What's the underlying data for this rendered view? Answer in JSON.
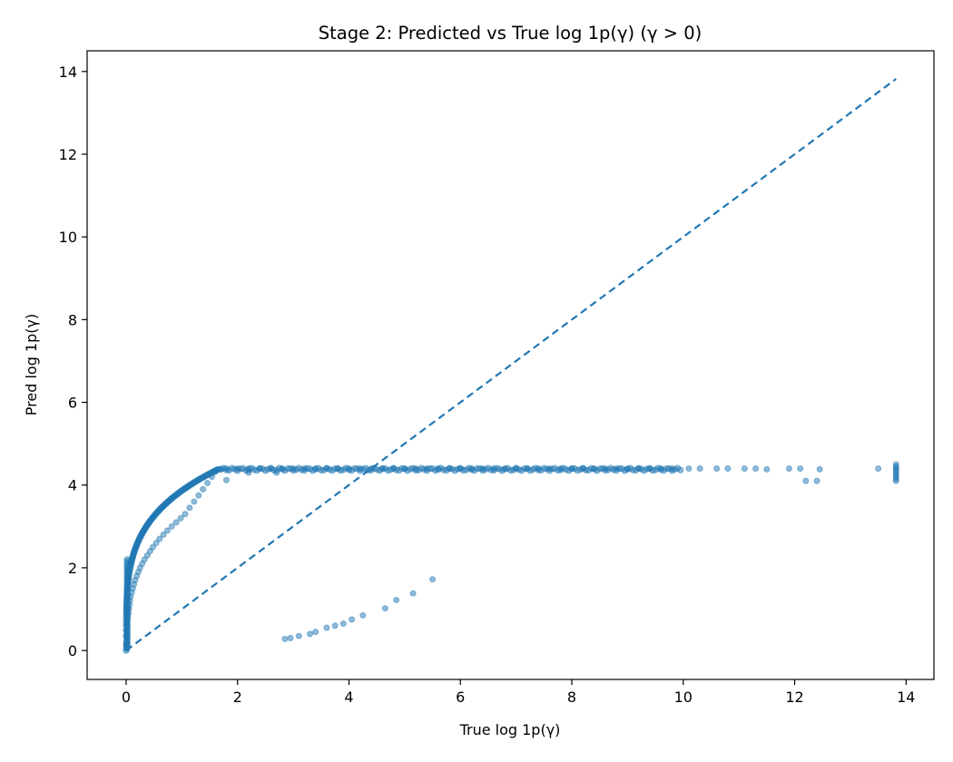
{
  "chart_data": {
    "type": "scatter",
    "title": "Stage 2: Predicted vs True log 1p(γ) (γ > 0)",
    "xlabel": "True log 1p(γ)",
    "ylabel": "Pred log 1p(γ)",
    "xlim": [
      -0.7,
      14.5
    ],
    "ylim": [
      -0.7,
      14.5
    ],
    "xticks": [
      0,
      2,
      4,
      6,
      8,
      10,
      12,
      14
    ],
    "yticks": [
      0,
      2,
      4,
      6,
      8,
      10,
      12,
      14
    ],
    "xtick_labels": [
      "0",
      "2",
      "4",
      "6",
      "8",
      "10",
      "12",
      "14"
    ],
    "ytick_labels": [
      "0",
      "2",
      "4",
      "6",
      "8",
      "10",
      "12",
      "14"
    ],
    "grid": false,
    "legend": "none",
    "colors": {
      "series": "#1f77b4",
      "reference_line": "#1f77b4"
    },
    "marker_alpha": 0.5,
    "reference_line": {
      "style": "dashed",
      "x": [
        0,
        13.82
      ],
      "y": [
        0,
        13.82
      ]
    },
    "series": [
      {
        "points": [
          [
            0.0,
            0.05
          ],
          [
            0.0,
            0.1
          ],
          [
            0.0,
            0.15
          ],
          [
            0.0,
            0.2
          ],
          [
            0.01,
            0.25
          ],
          [
            0.01,
            0.3
          ],
          [
            0.01,
            0.4
          ],
          [
            0.01,
            0.5
          ],
          [
            0.02,
            0.6
          ],
          [
            0.02,
            0.7
          ],
          [
            0.03,
            0.8
          ],
          [
            0.04,
            0.9
          ],
          [
            0.05,
            1.0
          ],
          [
            0.06,
            1.1
          ],
          [
            0.07,
            1.2
          ],
          [
            0.08,
            1.3
          ],
          [
            0.1,
            1.4
          ],
          [
            0.12,
            1.5
          ],
          [
            0.14,
            1.6
          ],
          [
            0.16,
            1.7
          ],
          [
            0.19,
            1.8
          ],
          [
            0.22,
            1.9
          ],
          [
            0.25,
            2.0
          ],
          [
            0.29,
            2.1
          ],
          [
            0.33,
            2.2
          ],
          [
            0.38,
            2.3
          ],
          [
            0.43,
            2.4
          ],
          [
            0.48,
            2.5
          ],
          [
            0.54,
            2.6
          ],
          [
            0.6,
            2.7
          ],
          [
            0.67,
            2.8
          ],
          [
            0.74,
            2.9
          ],
          [
            0.82,
            3.0
          ],
          [
            0.9,
            3.1
          ],
          [
            0.98,
            3.2
          ],
          [
            1.06,
            3.3
          ],
          [
            1.14,
            3.45
          ],
          [
            1.22,
            3.6
          ],
          [
            1.3,
            3.75
          ],
          [
            1.38,
            3.9
          ],
          [
            1.46,
            4.05
          ],
          [
            1.54,
            4.2
          ],
          [
            1.6,
            4.32
          ],
          [
            1.65,
            4.38
          ],
          [
            1.7,
            4.38
          ],
          [
            1.8,
            4.4
          ],
          [
            2.0,
            4.4
          ],
          [
            2.2,
            4.4
          ],
          [
            2.4,
            4.4
          ],
          [
            2.6,
            4.4
          ],
          [
            2.8,
            4.4
          ],
          [
            3.0,
            4.4
          ],
          [
            3.2,
            4.4
          ],
          [
            3.4,
            4.4
          ],
          [
            3.6,
            4.4
          ],
          [
            3.8,
            4.4
          ],
          [
            4.0,
            4.4
          ],
          [
            4.2,
            4.4
          ],
          [
            4.4,
            4.4
          ],
          [
            4.6,
            4.4
          ],
          [
            4.8,
            4.4
          ],
          [
            5.0,
            4.4
          ],
          [
            5.2,
            4.4
          ],
          [
            5.4,
            4.4
          ],
          [
            5.6,
            4.4
          ],
          [
            5.8,
            4.4
          ],
          [
            6.0,
            4.4
          ],
          [
            6.2,
            4.4
          ],
          [
            6.4,
            4.4
          ],
          [
            6.6,
            4.4
          ],
          [
            6.8,
            4.4
          ],
          [
            7.0,
            4.4
          ],
          [
            7.2,
            4.4
          ],
          [
            7.4,
            4.4
          ],
          [
            7.6,
            4.4
          ],
          [
            7.8,
            4.4
          ],
          [
            8.0,
            4.4
          ],
          [
            8.2,
            4.4
          ],
          [
            8.4,
            4.4
          ],
          [
            8.6,
            4.4
          ],
          [
            8.8,
            4.4
          ],
          [
            9.0,
            4.4
          ],
          [
            9.2,
            4.4
          ],
          [
            9.4,
            4.4
          ],
          [
            9.6,
            4.4
          ],
          [
            9.8,
            4.4
          ],
          [
            10.1,
            4.4
          ],
          [
            10.3,
            4.4
          ],
          [
            10.6,
            4.4
          ],
          [
            10.8,
            4.4
          ],
          [
            11.1,
            4.4
          ],
          [
            11.3,
            4.4
          ],
          [
            11.5,
            4.38
          ],
          [
            11.9,
            4.4
          ],
          [
            12.1,
            4.4
          ],
          [
            12.45,
            4.38
          ],
          [
            13.5,
            4.4
          ],
          [
            1.8,
            4.12
          ],
          [
            2.2,
            4.3
          ],
          [
            2.7,
            4.3
          ],
          [
            12.2,
            4.1
          ],
          [
            12.4,
            4.1
          ],
          [
            13.82,
            4.1
          ],
          [
            13.82,
            4.15
          ],
          [
            13.82,
            4.2
          ],
          [
            13.82,
            4.25
          ],
          [
            13.82,
            4.3
          ],
          [
            13.82,
            4.35
          ],
          [
            13.82,
            4.4
          ],
          [
            13.82,
            4.45
          ],
          [
            13.82,
            4.5
          ],
          [
            2.85,
            0.28
          ],
          [
            2.95,
            0.3
          ],
          [
            3.1,
            0.35
          ],
          [
            3.3,
            0.4
          ],
          [
            3.4,
            0.45
          ],
          [
            3.6,
            0.55
          ],
          [
            3.75,
            0.6
          ],
          [
            3.9,
            0.65
          ],
          [
            4.05,
            0.75
          ],
          [
            4.25,
            0.85
          ],
          [
            4.65,
            1.02
          ],
          [
            4.85,
            1.22
          ],
          [
            5.15,
            1.38
          ],
          [
            5.5,
            1.72
          ]
        ]
      }
    ]
  }
}
